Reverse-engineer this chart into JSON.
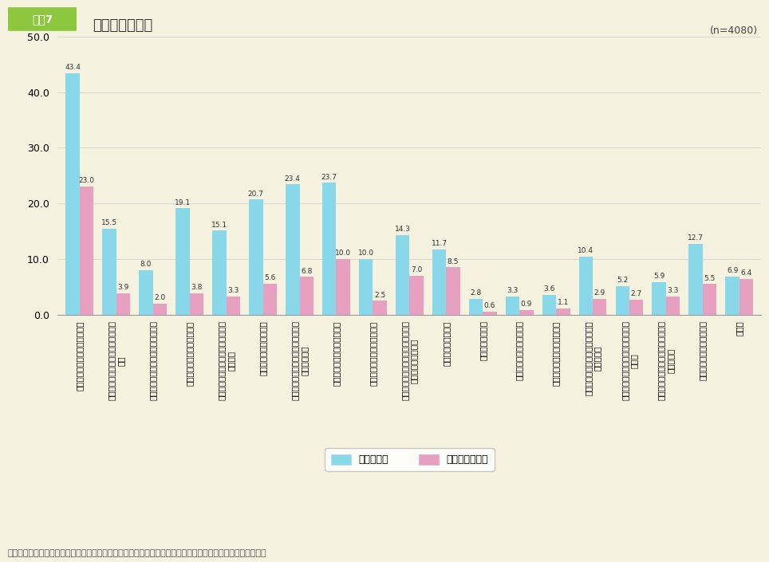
{
  "title": "初職の離職理由",
  "title_label": "図表7",
  "n_label": "(n=4080)",
  "ylabel": "(%)",
  "ylim": [
    0,
    50
  ],
  "yticks": [
    0.0,
    10.0,
    20.0,
    30.0,
    40.0,
    50.0
  ],
  "background_color": "#f5f2e0",
  "header_bg": "#8dc63f",
  "bar_color1": "#88d8ea",
  "bar_color2": "#e8a0c0",
  "categories": [
    "仕事が自分に合わなかったため",
    "自分の技能・能力が活かせなかった\nため",
    "責任ある仕事を任されなかったため",
    "ノルマや責任が重すぎたため",
    "勤務先の会社等に将来性がないと考\nえたため",
    "賃金がよくなかったため",
    "労働時間、休日、休暇の条件がよく\nなかったため",
    "人間関係がよくなかったため",
    "不安定な雇用状態だったため",
    "健康上の理由で勤務先での仕事を続\nけられなかったため",
    "結婚、子育てのため",
    "介護、看護のため",
    "独立して事業を始めるため",
    "家業を継ぐまたは手伝うため",
    "同じ会社等に長く勤務する気がな\nかったため",
    "倒産や整理解雇など、勤務先の事情\nのため",
    "雇用期間の満了後に継続雇用されな\nかったため",
    "なんとなく嫌になったため",
    "その他"
  ],
  "values1": [
    43.4,
    15.5,
    8.0,
    19.1,
    15.1,
    20.7,
    23.4,
    23.7,
    10.0,
    14.3,
    11.7,
    2.8,
    3.3,
    3.6,
    10.4,
    5.2,
    5.9,
    12.7,
    6.9
  ],
  "values2": [
    23.0,
    3.9,
    2.0,
    3.8,
    3.3,
    5.6,
    6.8,
    10.0,
    2.5,
    7.0,
    8.5,
    0.6,
    0.9,
    1.1,
    2.9,
    2.7,
    3.3,
    5.5,
    6.4
  ],
  "legend1": "離職の理由",
  "legend2": "最も重要な理由",
  "note": "（注）最初の就業先を離職した者について、「離職の理由について教えてください。」の問いに対する回答。"
}
